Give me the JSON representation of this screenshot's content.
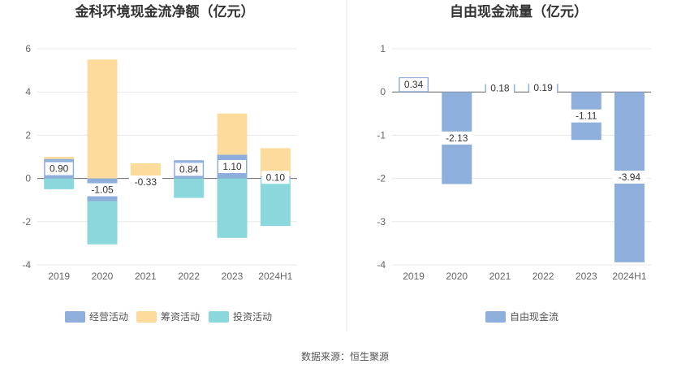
{
  "chart_data": [
    {
      "type": "bar",
      "stacked": true,
      "title": "金科环境现金流净额（亿元）",
      "categories": [
        "2019",
        "2020",
        "2021",
        "2022",
        "2023",
        "2024H1"
      ],
      "ylim": [
        -4,
        6
      ],
      "yticks": [
        -4,
        -2,
        0,
        2,
        4,
        6
      ],
      "grid": true,
      "legend_position": "bottom",
      "series": [
        {
          "name": "经营活动",
          "color": "#8eaedc",
          "values": [
            0.9,
            -1.05,
            -0.33,
            0.84,
            1.1,
            0.1
          ],
          "labels": [
            "0.90",
            "-1.05",
            "-0.33",
            "0.84",
            "1.10",
            "0.10"
          ]
        },
        {
          "name": "筹资活动",
          "color": "#fddb9c",
          "values": [
            0.1,
            5.5,
            0.7,
            0.0,
            1.9,
            1.3
          ]
        },
        {
          "name": "投资活动",
          "color": "#8ad8dc",
          "values": [
            -0.5,
            -2.0,
            0.0,
            -0.9,
            -2.75,
            -2.2
          ]
        }
      ]
    },
    {
      "type": "bar",
      "title": "自由现金流量（亿元）",
      "categories": [
        "2019",
        "2020",
        "2021",
        "2022",
        "2023",
        "2024H1"
      ],
      "ylim": [
        -4,
        1
      ],
      "yticks": [
        -4,
        -3,
        -2,
        -1,
        0,
        1
      ],
      "grid": true,
      "legend_position": "bottom",
      "series": [
        {
          "name": "自由现金流",
          "color": "#8eaedc",
          "values": [
            0.34,
            -2.13,
            0.18,
            0.19,
            -1.11,
            -3.94
          ],
          "labels": [
            "0.34",
            "-2.13",
            "0.18",
            "0.19",
            "-1.11",
            "-3.94"
          ]
        }
      ]
    }
  ],
  "footer": {
    "source": "数据来源：恒生聚源"
  }
}
